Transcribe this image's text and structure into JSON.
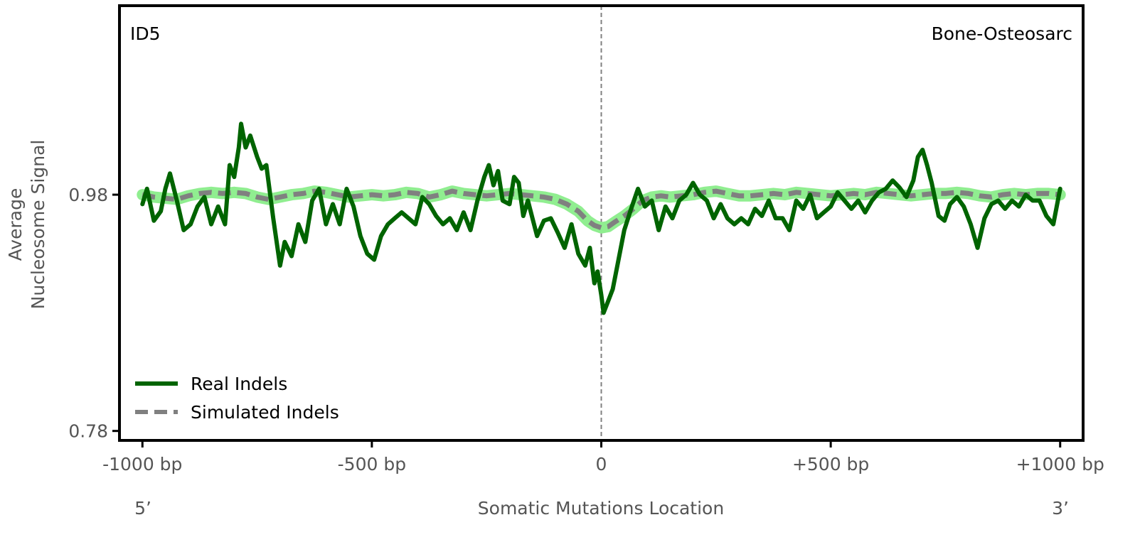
{
  "chart_data": {
    "type": "line",
    "xlabel": "Somatic Mutations Location",
    "ylabel_lines": [
      "Average",
      "Nucleosome Signal"
    ],
    "panel_label": "ID5",
    "tissue_label": "Bone-Osteosarc",
    "end_labels": {
      "left": "5’",
      "right": "3’"
    },
    "x_ticks": [
      {
        "value": -1000,
        "label": "-1000 bp"
      },
      {
        "value": -500,
        "label": "-500 bp"
      },
      {
        "value": 0,
        "label": "0"
      },
      {
        "value": 500,
        "label": "+500 bp"
      },
      {
        "value": 1000,
        "label": "+1000 bp"
      }
    ],
    "y_ticks": [
      {
        "value": 0.78,
        "label": "0.78"
      },
      {
        "value": 0.98,
        "label": "0.98"
      }
    ],
    "xlim": [
      -1050,
      1050
    ],
    "ylim": [
      0.772,
      1.14
    ],
    "center_line": {
      "x": 0,
      "style": "dashed",
      "color": "#808080"
    },
    "legend": {
      "position": "lower-left"
    },
    "series": [
      {
        "name": "Real Indels",
        "color": "#006400",
        "style": "solid",
        "points": [
          [
            -1000,
            0.972
          ],
          [
            -990,
            0.985
          ],
          [
            -975,
            0.958
          ],
          [
            -960,
            0.966
          ],
          [
            -950,
            0.985
          ],
          [
            -940,
            0.998
          ],
          [
            -925,
            0.975
          ],
          [
            -910,
            0.95
          ],
          [
            -895,
            0.955
          ],
          [
            -880,
            0.97
          ],
          [
            -865,
            0.978
          ],
          [
            -850,
            0.955
          ],
          [
            -835,
            0.97
          ],
          [
            -820,
            0.955
          ],
          [
            -810,
            1.005
          ],
          [
            -800,
            0.995
          ],
          [
            -790,
            1.02
          ],
          [
            -785,
            1.04
          ],
          [
            -775,
            1.02
          ],
          [
            -765,
            1.03
          ],
          [
            -750,
            1.012
          ],
          [
            -740,
            1.002
          ],
          [
            -730,
            1.005
          ],
          [
            -715,
            0.96
          ],
          [
            -700,
            0.92
          ],
          [
            -690,
            0.94
          ],
          [
            -675,
            0.928
          ],
          [
            -660,
            0.955
          ],
          [
            -645,
            0.94
          ],
          [
            -630,
            0.975
          ],
          [
            -615,
            0.985
          ],
          [
            -600,
            0.955
          ],
          [
            -585,
            0.972
          ],
          [
            -570,
            0.955
          ],
          [
            -555,
            0.985
          ],
          [
            -540,
            0.97
          ],
          [
            -525,
            0.945
          ],
          [
            -510,
            0.93
          ],
          [
            -495,
            0.925
          ],
          [
            -480,
            0.945
          ],
          [
            -465,
            0.955
          ],
          [
            -450,
            0.96
          ],
          [
            -435,
            0.965
          ],
          [
            -420,
            0.96
          ],
          [
            -405,
            0.955
          ],
          [
            -390,
            0.978
          ],
          [
            -375,
            0.972
          ],
          [
            -360,
            0.962
          ],
          [
            -345,
            0.955
          ],
          [
            -330,
            0.96
          ],
          [
            -315,
            0.95
          ],
          [
            -300,
            0.965
          ],
          [
            -285,
            0.95
          ],
          [
            -270,
            0.975
          ],
          [
            -255,
            0.995
          ],
          [
            -245,
            1.005
          ],
          [
            -235,
            0.988
          ],
          [
            -225,
            1.0
          ],
          [
            -215,
            0.975
          ],
          [
            -200,
            0.972
          ],
          [
            -190,
            0.995
          ],
          [
            -180,
            0.99
          ],
          [
            -170,
            0.962
          ],
          [
            -160,
            0.975
          ],
          [
            -150,
            0.96
          ],
          [
            -140,
            0.945
          ],
          [
            -125,
            0.958
          ],
          [
            -110,
            0.96
          ],
          [
            -95,
            0.948
          ],
          [
            -80,
            0.935
          ],
          [
            -65,
            0.955
          ],
          [
            -50,
            0.93
          ],
          [
            -35,
            0.92
          ],
          [
            -25,
            0.935
          ],
          [
            -15,
            0.905
          ],
          [
            -8,
            0.915
          ],
          [
            0,
            0.895
          ],
          [
            5,
            0.88
          ],
          [
            15,
            0.89
          ],
          [
            25,
            0.9
          ],
          [
            35,
            0.92
          ],
          [
            50,
            0.95
          ],
          [
            65,
            0.968
          ],
          [
            80,
            0.985
          ],
          [
            95,
            0.97
          ],
          [
            110,
            0.975
          ],
          [
            125,
            0.95
          ],
          [
            140,
            0.97
          ],
          [
            155,
            0.96
          ],
          [
            170,
            0.975
          ],
          [
            185,
            0.98
          ],
          [
            200,
            0.99
          ],
          [
            215,
            0.98
          ],
          [
            230,
            0.975
          ],
          [
            245,
            0.96
          ],
          [
            260,
            0.972
          ],
          [
            275,
            0.96
          ],
          [
            290,
            0.955
          ],
          [
            305,
            0.96
          ],
          [
            320,
            0.955
          ],
          [
            335,
            0.968
          ],
          [
            350,
            0.962
          ],
          [
            365,
            0.975
          ],
          [
            380,
            0.96
          ],
          [
            395,
            0.96
          ],
          [
            410,
            0.95
          ],
          [
            425,
            0.975
          ],
          [
            440,
            0.968
          ],
          [
            455,
            0.98
          ],
          [
            470,
            0.96
          ],
          [
            485,
            0.965
          ],
          [
            500,
            0.97
          ],
          [
            515,
            0.982
          ],
          [
            530,
            0.975
          ],
          [
            545,
            0.968
          ],
          [
            560,
            0.975
          ],
          [
            575,
            0.965
          ],
          [
            590,
            0.975
          ],
          [
            605,
            0.982
          ],
          [
            620,
            0.985
          ],
          [
            635,
            0.992
          ],
          [
            650,
            0.986
          ],
          [
            665,
            0.978
          ],
          [
            680,
            0.992
          ],
          [
            690,
            1.012
          ],
          [
            700,
            1.018
          ],
          [
            710,
            1.005
          ],
          [
            720,
            0.99
          ],
          [
            735,
            0.962
          ],
          [
            748,
            0.958
          ],
          [
            760,
            0.972
          ],
          [
            775,
            0.978
          ],
          [
            790,
            0.97
          ],
          [
            805,
            0.955
          ],
          [
            820,
            0.935
          ],
          [
            835,
            0.96
          ],
          [
            850,
            0.972
          ],
          [
            865,
            0.975
          ],
          [
            880,
            0.968
          ],
          [
            895,
            0.975
          ],
          [
            910,
            0.97
          ],
          [
            925,
            0.98
          ],
          [
            940,
            0.975
          ],
          [
            955,
            0.975
          ],
          [
            970,
            0.962
          ],
          [
            985,
            0.955
          ],
          [
            995,
            0.975
          ],
          [
            1000,
            0.985
          ]
        ]
      },
      {
        "name": "Simulated Indels",
        "color": "#808080",
        "band_color": "#90ee90",
        "style": "dashed",
        "points": [
          [
            -1000,
            0.98
          ],
          [
            -975,
            0.978
          ],
          [
            -950,
            0.977
          ],
          [
            -925,
            0.976
          ],
          [
            -900,
            0.979
          ],
          [
            -875,
            0.981
          ],
          [
            -850,
            0.982
          ],
          [
            -825,
            0.981
          ],
          [
            -800,
            0.982
          ],
          [
            -775,
            0.981
          ],
          [
            -750,
            0.978
          ],
          [
            -725,
            0.976
          ],
          [
            -700,
            0.978
          ],
          [
            -675,
            0.98
          ],
          [
            -650,
            0.981
          ],
          [
            -625,
            0.983
          ],
          [
            -600,
            0.982
          ],
          [
            -575,
            0.98
          ],
          [
            -550,
            0.978
          ],
          [
            -525,
            0.979
          ],
          [
            -500,
            0.98
          ],
          [
            -475,
            0.979
          ],
          [
            -450,
            0.98
          ],
          [
            -425,
            0.982
          ],
          [
            -400,
            0.981
          ],
          [
            -375,
            0.978
          ],
          [
            -350,
            0.98
          ],
          [
            -325,
            0.983
          ],
          [
            -300,
            0.981
          ],
          [
            -275,
            0.98
          ],
          [
            -250,
            0.979
          ],
          [
            -225,
            0.98
          ],
          [
            -200,
            0.981
          ],
          [
            -175,
            0.98
          ],
          [
            -150,
            0.979
          ],
          [
            -125,
            0.978
          ],
          [
            -100,
            0.976
          ],
          [
            -75,
            0.972
          ],
          [
            -50,
            0.966
          ],
          [
            -30,
            0.958
          ],
          [
            -15,
            0.954
          ],
          [
            0,
            0.952
          ],
          [
            15,
            0.953
          ],
          [
            30,
            0.957
          ],
          [
            50,
            0.962
          ],
          [
            70,
            0.968
          ],
          [
            90,
            0.975
          ],
          [
            110,
            0.978
          ],
          [
            130,
            0.979
          ],
          [
            150,
            0.978
          ],
          [
            175,
            0.979
          ],
          [
            200,
            0.98
          ],
          [
            225,
            0.982
          ],
          [
            250,
            0.983
          ],
          [
            275,
            0.981
          ],
          [
            300,
            0.979
          ],
          [
            325,
            0.979
          ],
          [
            350,
            0.98
          ],
          [
            375,
            0.981
          ],
          [
            400,
            0.98
          ],
          [
            425,
            0.982
          ],
          [
            450,
            0.981
          ],
          [
            475,
            0.98
          ],
          [
            500,
            0.979
          ],
          [
            525,
            0.98
          ],
          [
            550,
            0.981
          ],
          [
            575,
            0.98
          ],
          [
            600,
            0.982
          ],
          [
            625,
            0.981
          ],
          [
            650,
            0.98
          ],
          [
            675,
            0.979
          ],
          [
            700,
            0.98
          ],
          [
            725,
            0.981
          ],
          [
            750,
            0.981
          ],
          [
            775,
            0.982
          ],
          [
            800,
            0.981
          ],
          [
            825,
            0.979
          ],
          [
            850,
            0.978
          ],
          [
            875,
            0.98
          ],
          [
            900,
            0.981
          ],
          [
            925,
            0.98
          ],
          [
            950,
            0.981
          ],
          [
            975,
            0.981
          ],
          [
            1000,
            0.98
          ]
        ]
      }
    ]
  }
}
